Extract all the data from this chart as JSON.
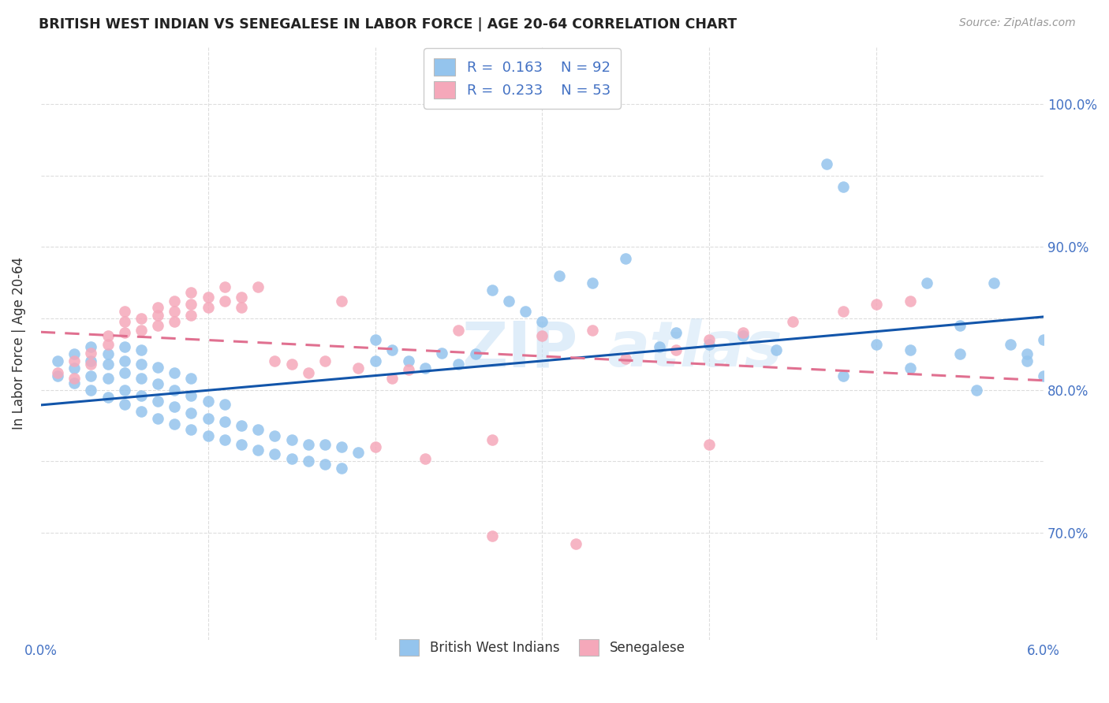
{
  "title": "BRITISH WEST INDIAN VS SENEGALESE IN LABOR FORCE | AGE 20-64 CORRELATION CHART",
  "source": "Source: ZipAtlas.com",
  "ylabel": "In Labor Force | Age 20-64",
  "ytick_vals": [
    0.7,
    0.75,
    0.8,
    0.85,
    0.9,
    0.95,
    1.0
  ],
  "ytick_labels": [
    "70.0%",
    "",
    "80.0%",
    "",
    "90.0%",
    "",
    "100.0%"
  ],
  "xlim": [
    0.0,
    0.06
  ],
  "ylim": [
    0.625,
    1.04
  ],
  "color_blue": "#94C4ED",
  "color_pink": "#F5A8BA",
  "trendline_blue": "#1255AA",
  "trendline_pink": "#E07090",
  "legend_r1_black": "R = ",
  "legend_r1_val": "0.163",
  "legend_r1_n_black": "   N = ",
  "legend_r1_n_val": "92",
  "legend_r2_val": "0.233",
  "legend_r2_n_val": "53",
  "blue_scatter_x": [
    0.001,
    0.001,
    0.002,
    0.002,
    0.002,
    0.003,
    0.003,
    0.003,
    0.003,
    0.004,
    0.004,
    0.004,
    0.004,
    0.005,
    0.005,
    0.005,
    0.005,
    0.005,
    0.006,
    0.006,
    0.006,
    0.006,
    0.006,
    0.007,
    0.007,
    0.007,
    0.007,
    0.008,
    0.008,
    0.008,
    0.008,
    0.009,
    0.009,
    0.009,
    0.009,
    0.01,
    0.01,
    0.01,
    0.011,
    0.011,
    0.011,
    0.012,
    0.012,
    0.013,
    0.013,
    0.014,
    0.014,
    0.015,
    0.015,
    0.016,
    0.016,
    0.017,
    0.017,
    0.018,
    0.018,
    0.019,
    0.02,
    0.02,
    0.021,
    0.022,
    0.023,
    0.024,
    0.025,
    0.026,
    0.027,
    0.028,
    0.029,
    0.03,
    0.031,
    0.033,
    0.035,
    0.037,
    0.038,
    0.04,
    0.042,
    0.044,
    0.047,
    0.048,
    0.05,
    0.052,
    0.053,
    0.055,
    0.057,
    0.058,
    0.059,
    0.06,
    0.052,
    0.055,
    0.048,
    0.059,
    0.056,
    0.06
  ],
  "blue_scatter_y": [
    0.81,
    0.82,
    0.805,
    0.815,
    0.825,
    0.8,
    0.81,
    0.82,
    0.83,
    0.795,
    0.808,
    0.818,
    0.825,
    0.79,
    0.8,
    0.812,
    0.82,
    0.83,
    0.785,
    0.796,
    0.808,
    0.818,
    0.828,
    0.78,
    0.792,
    0.804,
    0.816,
    0.776,
    0.788,
    0.8,
    0.812,
    0.772,
    0.784,
    0.796,
    0.808,
    0.768,
    0.78,
    0.792,
    0.765,
    0.778,
    0.79,
    0.762,
    0.775,
    0.758,
    0.772,
    0.755,
    0.768,
    0.752,
    0.765,
    0.75,
    0.762,
    0.748,
    0.762,
    0.745,
    0.76,
    0.756,
    0.82,
    0.835,
    0.828,
    0.82,
    0.815,
    0.826,
    0.818,
    0.825,
    0.87,
    0.862,
    0.855,
    0.848,
    0.88,
    0.875,
    0.892,
    0.83,
    0.84,
    0.832,
    0.838,
    0.828,
    0.958,
    0.942,
    0.832,
    0.828,
    0.875,
    0.845,
    0.875,
    0.832,
    0.825,
    0.835,
    0.815,
    0.825,
    0.81,
    0.82,
    0.8,
    0.81
  ],
  "pink_scatter_x": [
    0.001,
    0.002,
    0.002,
    0.003,
    0.003,
    0.004,
    0.004,
    0.005,
    0.005,
    0.005,
    0.006,
    0.006,
    0.007,
    0.007,
    0.007,
    0.008,
    0.008,
    0.008,
    0.009,
    0.009,
    0.009,
    0.01,
    0.01,
    0.011,
    0.011,
    0.012,
    0.012,
    0.013,
    0.014,
    0.015,
    0.016,
    0.017,
    0.018,
    0.019,
    0.02,
    0.021,
    0.022,
    0.023,
    0.025,
    0.027,
    0.03,
    0.033,
    0.035,
    0.038,
    0.04,
    0.042,
    0.045,
    0.048,
    0.05,
    0.052,
    0.027,
    0.032,
    0.04
  ],
  "pink_scatter_y": [
    0.812,
    0.82,
    0.808,
    0.826,
    0.818,
    0.832,
    0.838,
    0.84,
    0.848,
    0.855,
    0.842,
    0.85,
    0.845,
    0.852,
    0.858,
    0.848,
    0.855,
    0.862,
    0.852,
    0.86,
    0.868,
    0.858,
    0.865,
    0.872,
    0.862,
    0.858,
    0.865,
    0.872,
    0.82,
    0.818,
    0.812,
    0.82,
    0.862,
    0.815,
    0.76,
    0.808,
    0.814,
    0.752,
    0.842,
    0.765,
    0.838,
    0.842,
    0.822,
    0.828,
    0.835,
    0.84,
    0.848,
    0.855,
    0.86,
    0.862,
    0.698,
    0.692,
    0.762
  ]
}
